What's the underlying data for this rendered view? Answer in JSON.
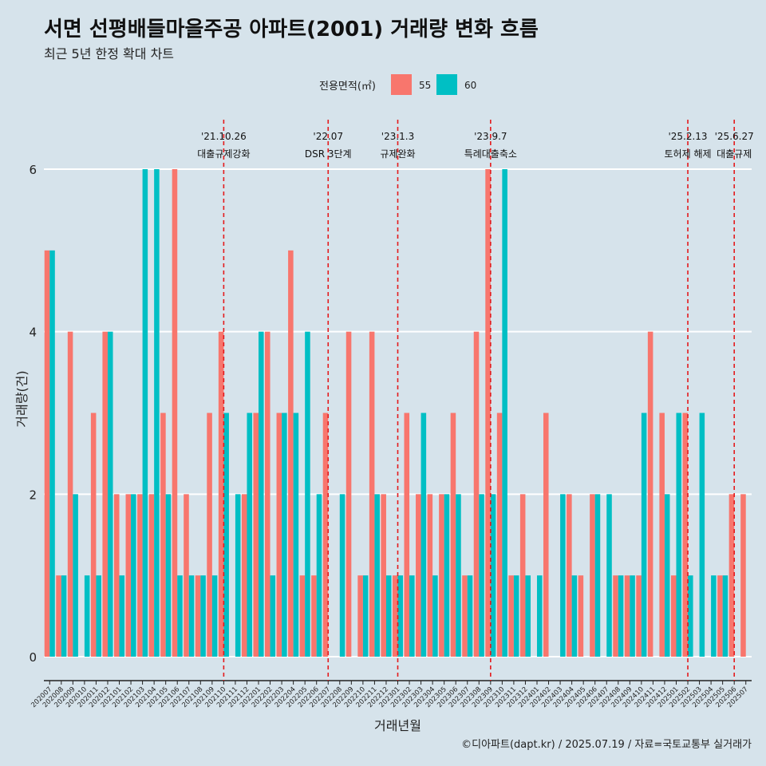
{
  "chart_data": {
    "type": "bar",
    "title": "서면 선평배들마을주공 아파트(2001) 거래량 변화 흐름",
    "subtitle": "최근 5년 한정 확대 차트",
    "xlabel": "거래년월",
    "ylabel": "거래량(건)",
    "caption": "©디아파트(dapt.kr) / 2025.07.19 / 자료=국토교통부 실거래가",
    "ylim": [
      0,
      6.2
    ],
    "yticks": [
      0,
      2,
      4,
      6
    ],
    "legend": {
      "title": "전용면적(㎡)",
      "position": "top",
      "entries": [
        {
          "label": "55",
          "color": "#F8766D"
        },
        {
          "label": "60",
          "color": "#00BFC4"
        }
      ]
    },
    "categories": [
      "202007",
      "202008",
      "202009",
      "202010",
      "202011",
      "202012",
      "202101",
      "202102",
      "202103",
      "202104",
      "202105",
      "202106",
      "202107",
      "202108",
      "202109",
      "202110",
      "202111",
      "202112",
      "202201",
      "202202",
      "202203",
      "202204",
      "202205",
      "202206",
      "202207",
      "202208",
      "202209",
      "202210",
      "202211",
      "202212",
      "202301",
      "202302",
      "202303",
      "202304",
      "202305",
      "202306",
      "202307",
      "202308",
      "202309",
      "202310",
      "202311",
      "202312",
      "202401",
      "202402",
      "202403",
      "202404",
      "202405",
      "202406",
      "202407",
      "202408",
      "202409",
      "202410",
      "202411",
      "202412",
      "202501",
      "202502",
      "202503",
      "202504",
      "202505",
      "202506",
      "202507"
    ],
    "series": [
      {
        "name": "55",
        "color": "#F8766D",
        "values": [
          5,
          1,
          4,
          0,
          3,
          4,
          2,
          2,
          2,
          2,
          3,
          6,
          2,
          1,
          3,
          4,
          0,
          2,
          3,
          4,
          3,
          5,
          1,
          1,
          3,
          0,
          4,
          1,
          4,
          2,
          1,
          3,
          2,
          2,
          2,
          3,
          1,
          4,
          6,
          3,
          1,
          2,
          0,
          3,
          0,
          2,
          1,
          2,
          0,
          1,
          1,
          1,
          4,
          3,
          1,
          3,
          0,
          0,
          1,
          2,
          2
        ]
      },
      {
        "name": "60",
        "color": "#00BFC4",
        "values": [
          5,
          1,
          2,
          1,
          1,
          4,
          1,
          2,
          6,
          6,
          2,
          1,
          1,
          1,
          1,
          3,
          2,
          3,
          4,
          1,
          3,
          3,
          4,
          2,
          0,
          2,
          0,
          1,
          2,
          1,
          1,
          1,
          3,
          1,
          2,
          2,
          1,
          2,
          2,
          6,
          1,
          1,
          1,
          0,
          2,
          1,
          0,
          2,
          2,
          1,
          1,
          3,
          0,
          2,
          3,
          1,
          3,
          1,
          1,
          0,
          0
        ]
      }
    ],
    "annotations": [
      {
        "x": "202110",
        "date": "'21.10.26",
        "label": "대출규제강화"
      },
      {
        "x": "202207",
        "date": "'22.07",
        "label": "DSR 3단계"
      },
      {
        "x": "202301",
        "date": "'23.1.3",
        "label": "규제완화"
      },
      {
        "x": "202309",
        "date": "'23.9.7",
        "label": "특례대출축소"
      },
      {
        "x": "202502",
        "date": "'25.2.13",
        "label": "토허제 해제"
      },
      {
        "x": "202506",
        "date": "'25.6.27",
        "label": "대출규제"
      }
    ],
    "colors": {
      "background": "#d6e3eb",
      "grid": "#ffffff",
      "vline": "#e41a1c"
    }
  }
}
